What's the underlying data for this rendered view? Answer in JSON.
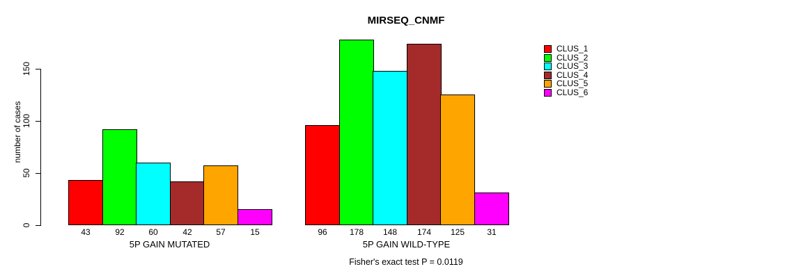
{
  "chart_data": {
    "type": "bar",
    "title": "MIRSEQ_CNMF",
    "xlabel": "",
    "ylabel": "number of cases",
    "categories": [
      "5P GAIN MUTATED",
      "5P GAIN WILD-TYPE"
    ],
    "series": [
      {
        "name": "CLUS_1",
        "color": "#FF0000",
        "values": [
          43,
          96
        ]
      },
      {
        "name": "CLUS_2",
        "color": "#00FF00",
        "values": [
          92,
          178
        ]
      },
      {
        "name": "CLUS_3",
        "color": "#00FFFF",
        "values": [
          60,
          148
        ]
      },
      {
        "name": "CLUS_4",
        "color": "#A52A2A",
        "values": [
          42,
          174
        ]
      },
      {
        "name": "CLUS_5",
        "color": "#FFA500",
        "values": [
          57,
          125
        ]
      },
      {
        "name": "CLUS_6",
        "color": "#FF00FF",
        "values": [
          15,
          31
        ]
      }
    ],
    "yticks": [
      0,
      50,
      100,
      150
    ],
    "ylim": [
      0,
      180
    ],
    "grid": false,
    "bar_value_labels": true,
    "legend_position": "right",
    "legend": [
      "CLUS_1",
      "CLUS_2",
      "CLUS_3",
      "CLUS_4",
      "CLUS_5",
      "CLUS_6"
    ],
    "annotation": "Fisher's exact test P = 0.0119"
  }
}
